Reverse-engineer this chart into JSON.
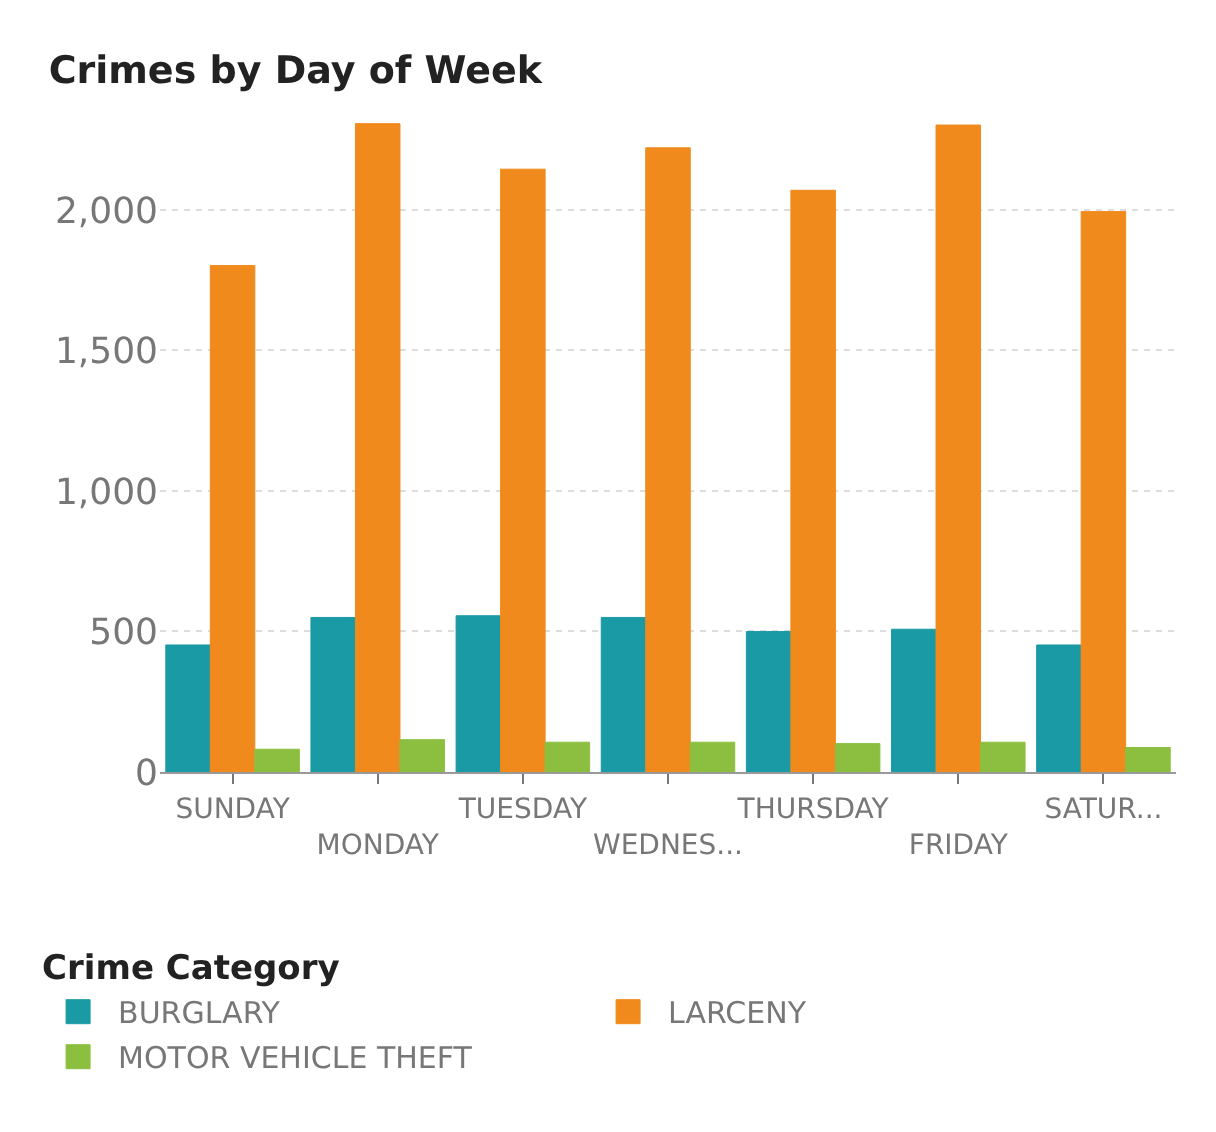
{
  "chart_data": {
    "type": "bar",
    "title": "Crimes by Day of Week",
    "legend_title": "Crime Category",
    "categories": [
      "SUNDAY",
      "MONDAY",
      "TUESDAY",
      "WEDNES...",
      "THURSDAY",
      "FRIDAY",
      "SATUR..."
    ],
    "series": [
      {
        "name": "BURGLARY",
        "color": "#1a9aa5",
        "values": [
          452,
          550,
          556,
          550,
          500,
          508,
          452
        ]
      },
      {
        "name": "LARCENY",
        "color": "#f08a1c",
        "values": [
          1802,
          2307,
          2145,
          2221,
          2070,
          2302,
          1994
        ]
      },
      {
        "name": "MOTOR VEHICLE THEFT",
        "color": "#8cbf3f",
        "values": [
          81,
          115,
          106,
          106,
          101,
          106,
          87
        ]
      }
    ],
    "ylim": [
      0,
      2320
    ],
    "yticks": [
      0,
      500,
      {
        "value": 1000,
        "label": "1,000"
      },
      {
        "value": 1500,
        "label": "1,500"
      },
      {
        "value": 2000,
        "label": "2,000"
      }
    ],
    "grid": "y",
    "legend": "bottom"
  }
}
